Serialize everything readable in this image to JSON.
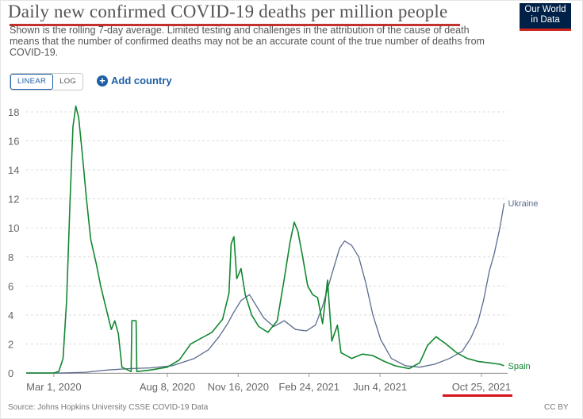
{
  "header": {
    "title": "Daily new confirmed COVID-19 deaths per million people",
    "subtitle": "Shown is the rolling 7-day average. Limited testing and challenges in the attribution of the cause of death means that the number of confirmed deaths may not be an accurate count of the true number of deaths from COVID-19."
  },
  "logo": {
    "line1": "Our World",
    "line2": "in Data"
  },
  "controls": {
    "linear_label": "LINEAR",
    "log_label": "LOG",
    "add_country_label": "Add country"
  },
  "footer": {
    "source": "Source: Johns Hopkins University CSSE COVID-19 Data",
    "license": "CC BY"
  },
  "colors": {
    "title_underline": "#c4302b",
    "tick_underline": "#d6131b",
    "spain": "#128730",
    "ukraine": "#5a6b8f"
  },
  "chart_data": {
    "type": "line",
    "title": "Daily new confirmed COVID-19 deaths per million people",
    "x_range": [
      "2020-01-22",
      "2021-12-01"
    ],
    "ylim": [
      0,
      18
    ],
    "y_ticks": [
      0,
      2,
      4,
      6,
      8,
      10,
      12,
      14,
      16,
      18
    ],
    "x_ticks": [
      {
        "date": "2020-03-01",
        "label": "Mar 1, 2020"
      },
      {
        "date": "2020-08-08",
        "label": "Aug 8, 2020"
      },
      {
        "date": "2020-11-16",
        "label": "Nov 16, 2020"
      },
      {
        "date": "2021-02-24",
        "label": "Feb 24, 2021"
      },
      {
        "date": "2021-06-04",
        "label": "Jun 4, 2021"
      },
      {
        "date": "2021-10-25",
        "label": "Oct 25, 2021"
      }
    ],
    "grid": true,
    "series": [
      {
        "name": "Ukraine",
        "points": [
          [
            "2020-01-22",
            0
          ],
          [
            "2020-03-10",
            0
          ],
          [
            "2020-04-15",
            0.05
          ],
          [
            "2020-05-15",
            0.2
          ],
          [
            "2020-06-15",
            0.3
          ],
          [
            "2020-07-15",
            0.35
          ],
          [
            "2020-08-15",
            0.5
          ],
          [
            "2020-09-15",
            1.0
          ],
          [
            "2020-10-05",
            1.6
          ],
          [
            "2020-10-20",
            2.5
          ],
          [
            "2020-11-01",
            3.4
          ],
          [
            "2020-11-10",
            4.2
          ],
          [
            "2020-11-20",
            5.0
          ],
          [
            "2020-12-02",
            5.4
          ],
          [
            "2020-12-12",
            4.6
          ],
          [
            "2020-12-22",
            3.8
          ],
          [
            "2021-01-05",
            3.2
          ],
          [
            "2021-01-20",
            3.6
          ],
          [
            "2021-02-05",
            3.0
          ],
          [
            "2021-02-20",
            2.9
          ],
          [
            "2021-03-05",
            3.3
          ],
          [
            "2021-03-15",
            4.6
          ],
          [
            "2021-03-28",
            6.8
          ],
          [
            "2021-04-08",
            8.6
          ],
          [
            "2021-04-15",
            9.1
          ],
          [
            "2021-04-25",
            8.8
          ],
          [
            "2021-05-05",
            8.0
          ],
          [
            "2021-05-15",
            6.2
          ],
          [
            "2021-05-25",
            4.0
          ],
          [
            "2021-06-05",
            2.3
          ],
          [
            "2021-06-20",
            1.0
          ],
          [
            "2021-07-10",
            0.5
          ],
          [
            "2021-07-30",
            0.4
          ],
          [
            "2021-08-20",
            0.6
          ],
          [
            "2021-09-10",
            1.0
          ],
          [
            "2021-09-28",
            1.5
          ],
          [
            "2021-10-10",
            2.4
          ],
          [
            "2021-10-20",
            3.5
          ],
          [
            "2021-10-28",
            5.0
          ],
          [
            "2021-11-05",
            7.0
          ],
          [
            "2021-11-12",
            8.2
          ],
          [
            "2021-11-20",
            10.0
          ],
          [
            "2021-11-26",
            11.7
          ]
        ]
      },
      {
        "name": "Spain",
        "points": [
          [
            "2020-01-22",
            0
          ],
          [
            "2020-03-01",
            0
          ],
          [
            "2020-03-08",
            0.1
          ],
          [
            "2020-03-14",
            1.0
          ],
          [
            "2020-03-19",
            5.0
          ],
          [
            "2020-03-24",
            12.0
          ],
          [
            "2020-03-28",
            17.0
          ],
          [
            "2020-04-01",
            18.4
          ],
          [
            "2020-04-05",
            17.6
          ],
          [
            "2020-04-10",
            15.2
          ],
          [
            "2020-04-16",
            12.0
          ],
          [
            "2020-04-22",
            9.2
          ],
          [
            "2020-04-30",
            7.5
          ],
          [
            "2020-05-06",
            6.0
          ],
          [
            "2020-05-14",
            4.4
          ],
          [
            "2020-05-21",
            3.0
          ],
          [
            "2020-05-26",
            3.6
          ],
          [
            "2020-05-31",
            2.7
          ],
          [
            "2020-06-05",
            0.4
          ],
          [
            "2020-06-18",
            0.1
          ],
          [
            "2020-06-19",
            3.6
          ],
          [
            "2020-06-25",
            3.6
          ],
          [
            "2020-06-26",
            0.1
          ],
          [
            "2020-07-15",
            0.2
          ],
          [
            "2020-08-08",
            0.4
          ],
          [
            "2020-08-25",
            0.9
          ],
          [
            "2020-09-10",
            2.0
          ],
          [
            "2020-09-25",
            2.4
          ],
          [
            "2020-10-10",
            2.8
          ],
          [
            "2020-10-25",
            3.7
          ],
          [
            "2020-11-03",
            5.5
          ],
          [
            "2020-11-06",
            8.9
          ],
          [
            "2020-11-10",
            9.4
          ],
          [
            "2020-11-14",
            6.5
          ],
          [
            "2020-11-20",
            7.2
          ],
          [
            "2020-11-26",
            5.4
          ],
          [
            "2020-12-05",
            4.0
          ],
          [
            "2020-12-15",
            3.2
          ],
          [
            "2020-12-28",
            2.8
          ],
          [
            "2021-01-10",
            3.6
          ],
          [
            "2021-01-20",
            6.5
          ],
          [
            "2021-01-28",
            9.0
          ],
          [
            "2021-02-03",
            10.4
          ],
          [
            "2021-02-08",
            9.8
          ],
          [
            "2021-02-15",
            8.0
          ],
          [
            "2021-02-22",
            6.0
          ],
          [
            "2021-03-01",
            5.4
          ],
          [
            "2021-03-08",
            5.2
          ],
          [
            "2021-03-15",
            3.4
          ],
          [
            "2021-03-22",
            6.4
          ],
          [
            "2021-03-28",
            2.2
          ],
          [
            "2021-04-05",
            3.3
          ],
          [
            "2021-04-10",
            1.4
          ],
          [
            "2021-04-25",
            1.0
          ],
          [
            "2021-05-10",
            1.3
          ],
          [
            "2021-05-25",
            1.2
          ],
          [
            "2021-06-10",
            0.8
          ],
          [
            "2021-06-25",
            0.5
          ],
          [
            "2021-07-15",
            0.3
          ],
          [
            "2021-07-30",
            0.7
          ],
          [
            "2021-08-10",
            1.9
          ],
          [
            "2021-08-22",
            2.5
          ],
          [
            "2021-09-05",
            2.0
          ],
          [
            "2021-09-20",
            1.4
          ],
          [
            "2021-10-05",
            1.0
          ],
          [
            "2021-10-20",
            0.8
          ],
          [
            "2021-11-05",
            0.7
          ],
          [
            "2021-11-20",
            0.6
          ],
          [
            "2021-11-26",
            0.5
          ]
        ]
      }
    ]
  }
}
